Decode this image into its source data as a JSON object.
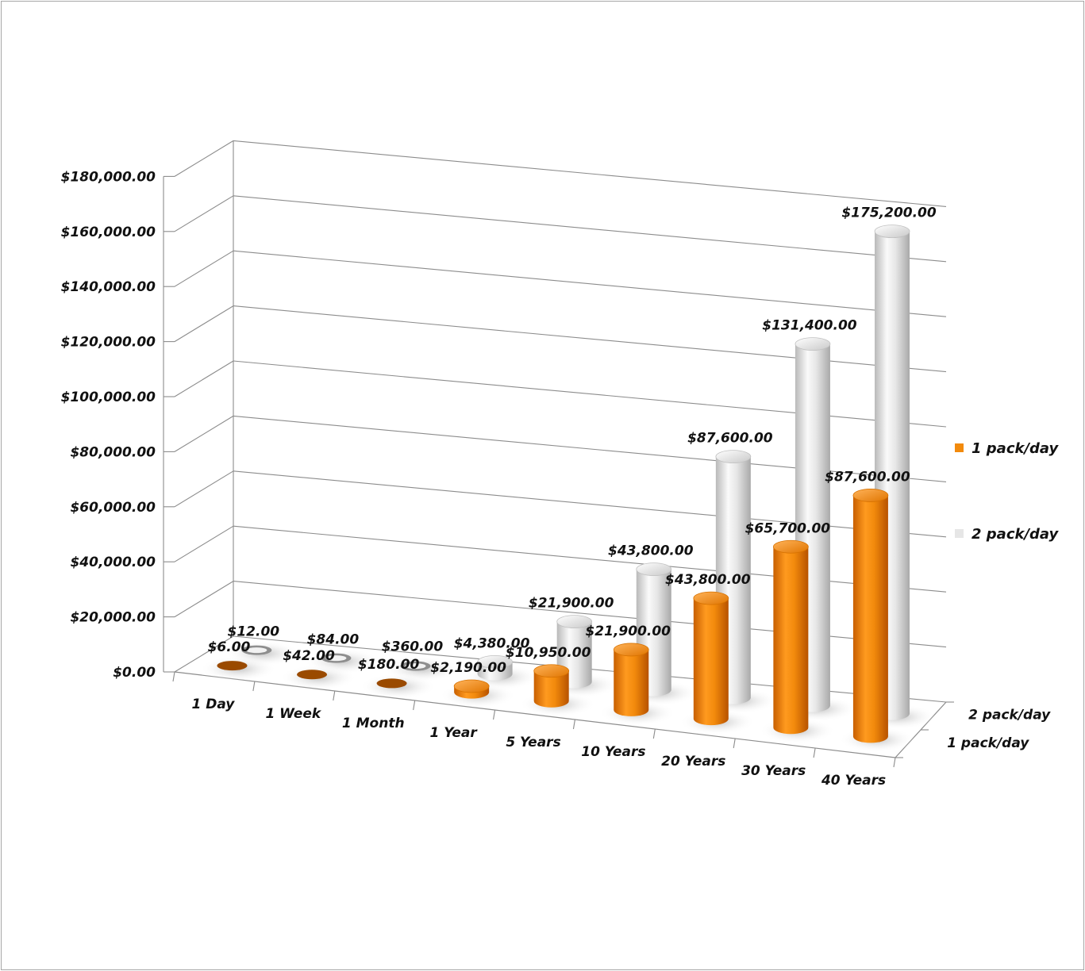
{
  "chart_data": {
    "type": "bar",
    "style": "3d-cylinder",
    "categories": [
      "1 Day",
      "1 Week",
      "1 Month",
      "1 Year",
      "5 Years",
      "10 Years",
      "20 Years",
      "30 Years",
      "40 Years"
    ],
    "series": [
      {
        "name": "1 pack/day",
        "color": "#F28A0C",
        "values": [
          6,
          42,
          180,
          2190,
          10950,
          21900,
          43800,
          65700,
          87600
        ],
        "labels": [
          "$6.00",
          "$42.00",
          "$180.00",
          "$2,190.00",
          "$10,950.00",
          "$21,900.00",
          "$43,800.00",
          "$65,700.00",
          "$87,600.00"
        ]
      },
      {
        "name": "2 pack/day",
        "color": "#E6E6E6",
        "values": [
          12,
          84,
          360,
          4380,
          21900,
          43800,
          87600,
          131400,
          175200
        ],
        "labels": [
          "$12.00",
          "$84.00",
          "$360.00",
          "$4,380.00",
          "$21,900.00",
          "$43,800.00",
          "$87,600.00",
          "$131,400.00",
          "$175,200.00"
        ]
      }
    ],
    "yticks": [
      "$0.00",
      "$20,000.00",
      "$40,000.00",
      "$60,000.00",
      "$80,000.00",
      "$100,000.00",
      "$120,000.00",
      "$140,000.00",
      "$160,000.00",
      "$180,000.00"
    ],
    "ylim": [
      0,
      180000
    ],
    "depth_labels": [
      "1 pack/day",
      "2 pack/day"
    ],
    "legend": [
      "1 pack/day",
      "2 pack/day"
    ],
    "legend_position": "right",
    "title": "",
    "xlabel": "",
    "ylabel": ""
  }
}
